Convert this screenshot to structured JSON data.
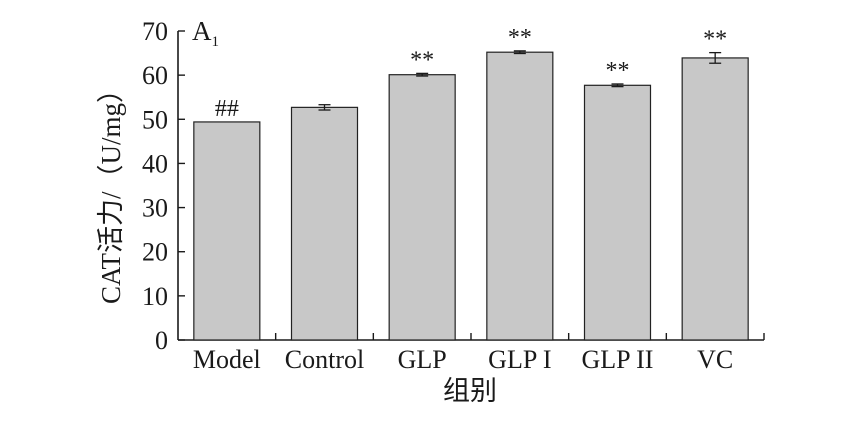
{
  "chart_data": {
    "type": "bar",
    "panel_label": "A",
    "panel_label_sub": "1",
    "xlabel": "组别",
    "ylabel": "CAT活力/（U/mg）",
    "ylim": [
      0,
      70
    ],
    "yticks": [
      0,
      10,
      20,
      30,
      40,
      50,
      60,
      70
    ],
    "grid": false,
    "categories": [
      "Model",
      "Control",
      "GLP",
      "GLP I",
      "GLP II",
      "VC"
    ],
    "values": [
      49.4,
      52.7,
      60.1,
      65.2,
      57.7,
      63.9
    ],
    "errors": [
      0.0,
      0.6,
      0.3,
      0.3,
      0.3,
      1.2
    ],
    "annotations": [
      "##",
      "",
      "**",
      "**",
      "**",
      "**"
    ],
    "bar_color": "#c8c8c8",
    "bar_edge_color": "#222222"
  }
}
